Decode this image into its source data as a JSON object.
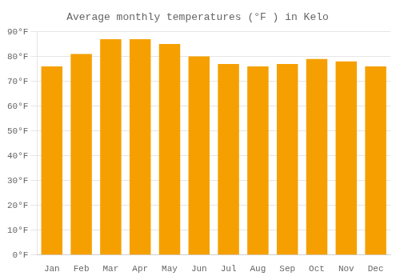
{
  "chart_data": {
    "type": "bar",
    "title": "Average monthly temperatures (°F ) in Kelo",
    "categories": [
      "Jan",
      "Feb",
      "Mar",
      "Apr",
      "May",
      "Jun",
      "Jul",
      "Aug",
      "Sep",
      "Oct",
      "Nov",
      "Dec"
    ],
    "values": [
      76,
      81,
      87,
      87,
      85,
      80,
      77,
      76,
      77,
      79,
      78,
      76
    ],
    "color": "#F5A000",
    "ylim": [
      0,
      90
    ],
    "yticks": [
      {
        "value": 0,
        "label": "0°F"
      },
      {
        "value": 10,
        "label": "10°F"
      },
      {
        "value": 20,
        "label": "20°F"
      },
      {
        "value": 30,
        "label": "30°F"
      },
      {
        "value": 40,
        "label": "40°F"
      },
      {
        "value": 50,
        "label": "50°F"
      },
      {
        "value": 60,
        "label": "60°F"
      },
      {
        "value": 70,
        "label": "70°F"
      },
      {
        "value": 80,
        "label": "80°F"
      },
      {
        "value": 90,
        "label": "90°F"
      }
    ],
    "grid": true
  }
}
